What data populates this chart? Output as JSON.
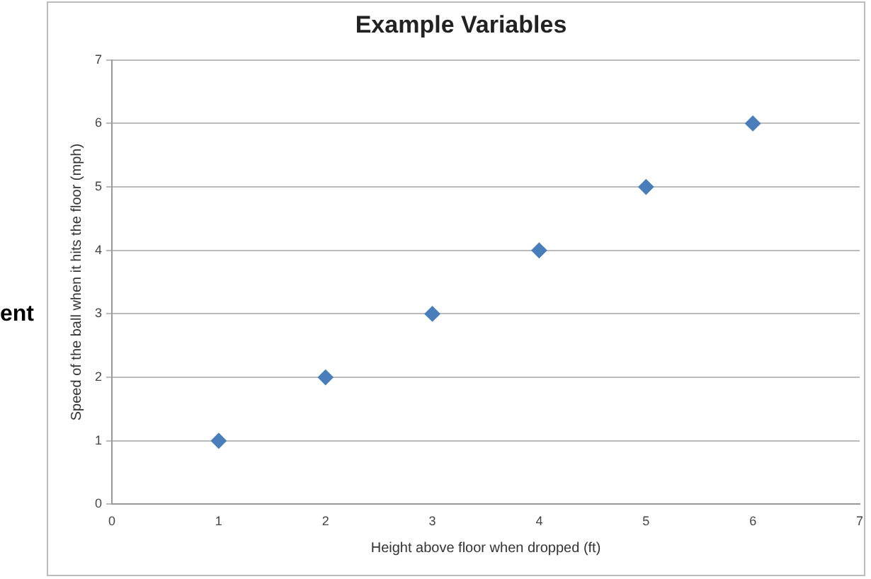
{
  "chart_data": {
    "type": "scatter",
    "title": "Example Variables",
    "xlabel": "Height above floor when dropped (ft)",
    "ylabel": "Speed of the ball when it hits the floor (mph)",
    "x": [
      1,
      2,
      3,
      4,
      5,
      6
    ],
    "series": [
      {
        "color": "#4a7ebb",
        "values": [
          1,
          2,
          3,
          4,
          5,
          6
        ]
      }
    ],
    "xlim": [
      0,
      7
    ],
    "xticks": [
      0,
      1,
      2,
      3,
      4,
      5,
      6,
      7
    ],
    "ylim": [
      0,
      7
    ],
    "yticks": [
      0,
      1,
      2,
      3,
      4,
      5,
      6,
      7
    ],
    "grid": "y",
    "legend": false,
    "marker": "diamond",
    "annotations": [
      "ent"
    ]
  }
}
